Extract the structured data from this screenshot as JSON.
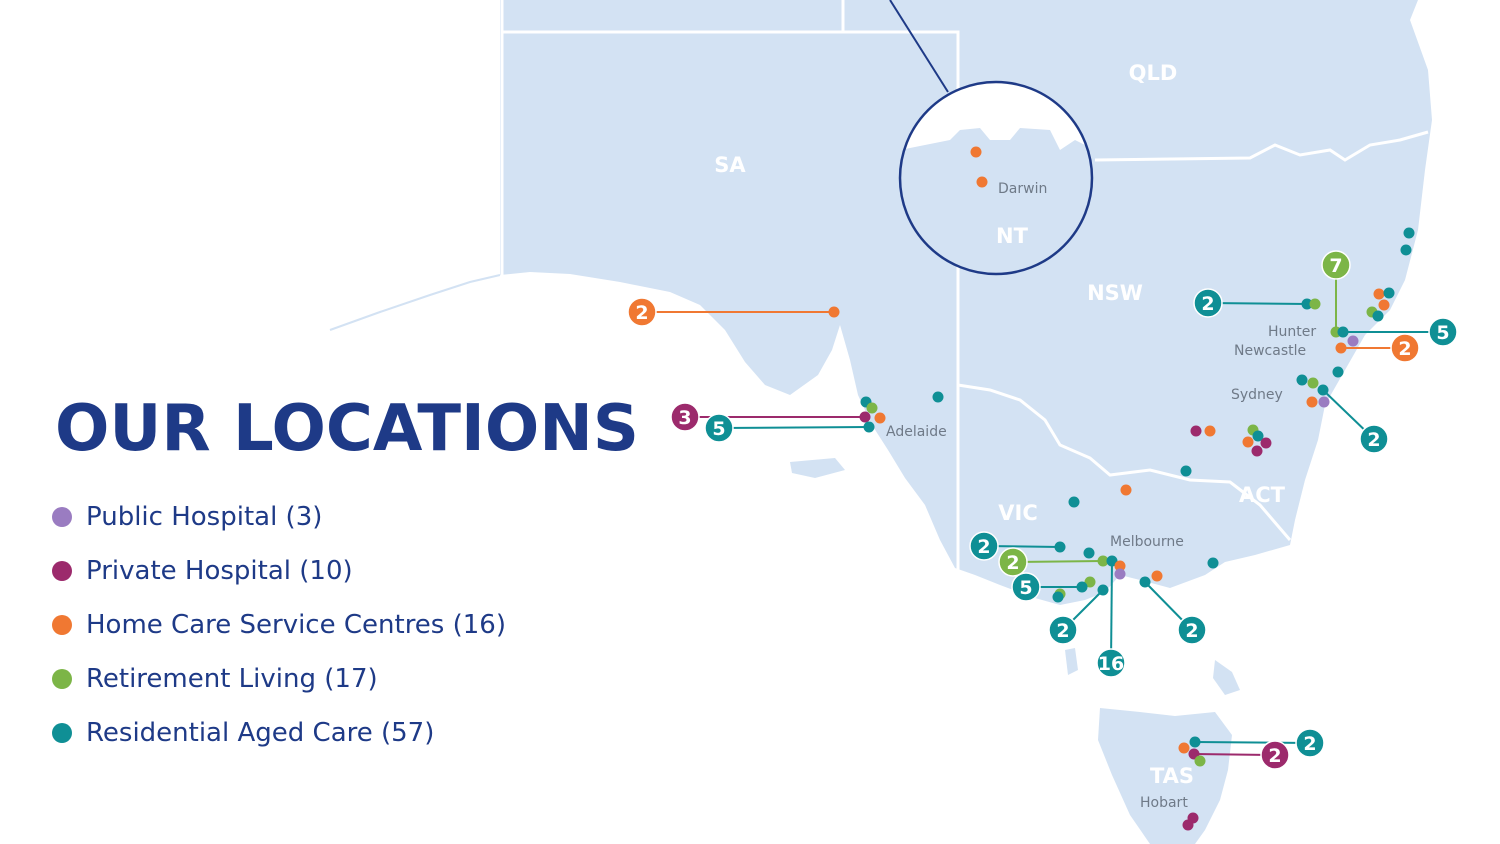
{
  "title": "OUR LOCATIONS",
  "colors": {
    "land": "#d3e2f3",
    "border": "#ffffff",
    "title": "#1e3a87",
    "public_hospital": "#9a7cc1",
    "private_hospital": "#9c2a6c",
    "home_care": "#f07832",
    "retirement_living": "#7cb547",
    "residential_aged_care": "#0f8f95"
  },
  "legend": [
    {
      "label": "Public Hospital (3)",
      "category": "public_hospital"
    },
    {
      "label": "Private Hospital (10)",
      "category": "private_hospital"
    },
    {
      "label": "Home Care Service Centres (16)",
      "category": "home_care"
    },
    {
      "label": "Retirement Living (17)",
      "category": "retirement_living"
    },
    {
      "label": "Residential Aged Care (57)",
      "category": "residential_aged_care"
    }
  ],
  "states": [
    "SA",
    "QLD",
    "NT",
    "NSW",
    "VIC",
    "ACT",
    "TAS"
  ],
  "cities": [
    "Darwin",
    "Adelaide",
    "Hunter",
    "Newcastle",
    "Sydney",
    "Melbourne",
    "Hobart"
  ],
  "clusters": [
    {
      "count": "2",
      "category": "home_care"
    },
    {
      "count": "3",
      "category": "private_hospital"
    },
    {
      "count": "5",
      "category": "residential_aged_care"
    },
    {
      "count": "7",
      "category": "retirement_living"
    },
    {
      "count": "2",
      "category": "residential_aged_care"
    },
    {
      "count": "5",
      "category": "residential_aged_care"
    },
    {
      "count": "2",
      "category": "home_care"
    },
    {
      "count": "2",
      "category": "residential_aged_care"
    },
    {
      "count": "2",
      "category": "residential_aged_care"
    },
    {
      "count": "2",
      "category": "retirement_living"
    },
    {
      "count": "5",
      "category": "residential_aged_care"
    },
    {
      "count": "2",
      "category": "residential_aged_care"
    },
    {
      "count": "16",
      "category": "residential_aged_care"
    },
    {
      "count": "2",
      "category": "residential_aged_care"
    },
    {
      "count": "2",
      "category": "residential_aged_care"
    },
    {
      "count": "2",
      "category": "private_hospital"
    }
  ]
}
